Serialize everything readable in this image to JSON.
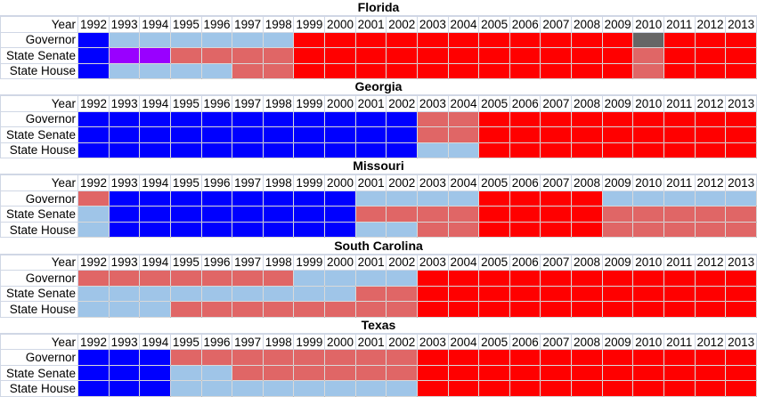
{
  "chart_data": {
    "type": "heatmap",
    "years": [
      "1992",
      "1993",
      "1994",
      "1995",
      "1996",
      "1997",
      "1998",
      "1999",
      "2000",
      "2001",
      "2002",
      "2003",
      "2004",
      "2005",
      "2006",
      "2007",
      "2008",
      "2009",
      "2010",
      "2011",
      "2012",
      "2013"
    ],
    "year_label": "Year",
    "colors": {
      "B": "#0000ff",
      "LB": "#9fc5e8",
      "LR": "#e06666",
      "R": "#ff0000",
      "P": "#9900ff",
      "G": "#666666"
    },
    "states": [
      {
        "name": "Florida",
        "rows": [
          {
            "label": "Governor",
            "cells": [
              "B",
              "LB",
              "LB",
              "LB",
              "LB",
              "LB",
              "LB",
              "R",
              "R",
              "R",
              "R",
              "R",
              "R",
              "R",
              "R",
              "R",
              "R",
              "R",
              "G",
              "R",
              "R",
              "R"
            ]
          },
          {
            "label": "State Senate",
            "cells": [
              "B",
              "P",
              "P",
              "LR",
              "LR",
              "LR",
              "LR",
              "R",
              "R",
              "R",
              "R",
              "R",
              "R",
              "R",
              "R",
              "R",
              "R",
              "R",
              "LR",
              "R",
              "R",
              "R"
            ]
          },
          {
            "label": "State House",
            "cells": [
              "B",
              "LB",
              "LB",
              "LB",
              "LB",
              "LR",
              "LR",
              "R",
              "R",
              "R",
              "R",
              "R",
              "R",
              "R",
              "R",
              "R",
              "R",
              "R",
              "LR",
              "R",
              "R",
              "R"
            ]
          }
        ]
      },
      {
        "name": "Georgia",
        "rows": [
          {
            "label": "Governor",
            "cells": [
              "B",
              "B",
              "B",
              "B",
              "B",
              "B",
              "B",
              "B",
              "B",
              "B",
              "B",
              "LR",
              "LR",
              "R",
              "R",
              "R",
              "R",
              "R",
              "R",
              "R",
              "R",
              "R"
            ]
          },
          {
            "label": "State Senate",
            "cells": [
              "B",
              "B",
              "B",
              "B",
              "B",
              "B",
              "B",
              "B",
              "B",
              "B",
              "B",
              "LR",
              "LR",
              "R",
              "R",
              "R",
              "R",
              "R",
              "R",
              "R",
              "R",
              "R"
            ]
          },
          {
            "label": "State House",
            "cells": [
              "B",
              "B",
              "B",
              "B",
              "B",
              "B",
              "B",
              "B",
              "B",
              "B",
              "B",
              "LB",
              "LB",
              "R",
              "R",
              "R",
              "R",
              "R",
              "R",
              "R",
              "R",
              "R"
            ]
          }
        ]
      },
      {
        "name": "Missouri",
        "rows": [
          {
            "label": "Governor",
            "cells": [
              "LR",
              "B",
              "B",
              "B",
              "B",
              "B",
              "B",
              "B",
              "B",
              "LB",
              "LB",
              "LB",
              "LB",
              "R",
              "R",
              "R",
              "R",
              "LB",
              "LB",
              "LB",
              "LB",
              "LB"
            ]
          },
          {
            "label": "State Senate",
            "cells": [
              "LB",
              "B",
              "B",
              "B",
              "B",
              "B",
              "B",
              "B",
              "B",
              "LR",
              "LR",
              "LR",
              "LR",
              "R",
              "R",
              "R",
              "R",
              "LR",
              "LR",
              "LR",
              "LR",
              "LR"
            ]
          },
          {
            "label": "State House",
            "cells": [
              "LB",
              "B",
              "B",
              "B",
              "B",
              "B",
              "B",
              "B",
              "B",
              "LB",
              "LB",
              "LR",
              "LR",
              "R",
              "R",
              "R",
              "R",
              "LR",
              "LR",
              "LR",
              "LR",
              "LR"
            ]
          }
        ]
      },
      {
        "name": "South Carolina",
        "rows": [
          {
            "label": "Governor",
            "cells": [
              "LR",
              "LR",
              "LR",
              "LR",
              "LR",
              "LR",
              "LR",
              "LB",
              "LB",
              "LB",
              "LB",
              "R",
              "R",
              "R",
              "R",
              "R",
              "R",
              "R",
              "R",
              "R",
              "R",
              "R"
            ]
          },
          {
            "label": "State Senate",
            "cells": [
              "LB",
              "LB",
              "LB",
              "LB",
              "LB",
              "LB",
              "LB",
              "LB",
              "LB",
              "LR",
              "LR",
              "R",
              "R",
              "R",
              "R",
              "R",
              "R",
              "R",
              "R",
              "R",
              "R",
              "R"
            ]
          },
          {
            "label": "State House",
            "cells": [
              "LB",
              "LB",
              "LB",
              "LR",
              "LR",
              "LR",
              "LR",
              "LR",
              "LR",
              "LR",
              "LR",
              "R",
              "R",
              "R",
              "R",
              "R",
              "R",
              "R",
              "R",
              "R",
              "R",
              "R"
            ]
          }
        ]
      },
      {
        "name": "Texas",
        "rows": [
          {
            "label": "Governor",
            "cells": [
              "B",
              "B",
              "B",
              "LR",
              "LR",
              "LR",
              "LR",
              "LR",
              "LR",
              "LR",
              "LR",
              "R",
              "R",
              "R",
              "R",
              "R",
              "R",
              "R",
              "R",
              "R",
              "R",
              "R"
            ]
          },
          {
            "label": "State Senate",
            "cells": [
              "B",
              "B",
              "B",
              "LB",
              "LB",
              "LR",
              "LR",
              "LR",
              "LR",
              "LR",
              "LR",
              "R",
              "R",
              "R",
              "R",
              "R",
              "R",
              "R",
              "R",
              "R",
              "R",
              "R"
            ]
          },
          {
            "label": "State House",
            "cells": [
              "B",
              "B",
              "B",
              "LB",
              "LB",
              "LB",
              "LB",
              "LB",
              "LB",
              "LB",
              "LB",
              "R",
              "R",
              "R",
              "R",
              "R",
              "R",
              "R",
              "R",
              "R",
              "R",
              "R"
            ]
          }
        ]
      }
    ]
  }
}
